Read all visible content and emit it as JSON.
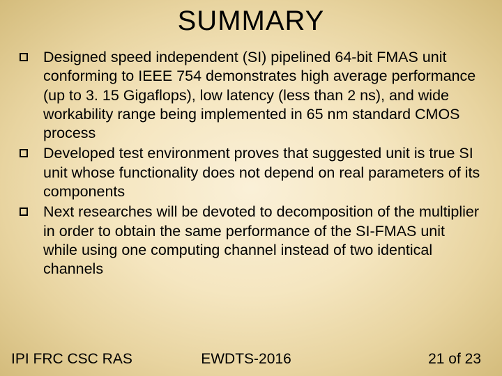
{
  "title": "SUMMARY",
  "bullets": [
    "Designed speed independent (SI) pipelined 64-bit FMAS unit conforming to IEEE 754 demonstrates high average performance (up to 3. 15 Gigaflops), low latency (less than 2 ns), and wide workability range being implemented in 65 nm standard CMOS process",
    "Developed test environment proves that suggested unit is true SI unit whose functionality does not depend on real parameters of its components",
    "Next researches will be devoted to decomposition of the multiplier in order to obtain the same performance of the SI-FMAS unit while using one computing channel instead of two identical channels"
  ],
  "footer": {
    "left": "IPI FRC CSC RAS",
    "center": "EWDTS-2016",
    "right": "21 of 23"
  },
  "colors": {
    "background_center": "#faf0d8",
    "background_edge": "#d4bc7c",
    "text": "#000000"
  },
  "fonts": {
    "title_size": 40,
    "body_size": 21.5,
    "footer_size": 21
  }
}
